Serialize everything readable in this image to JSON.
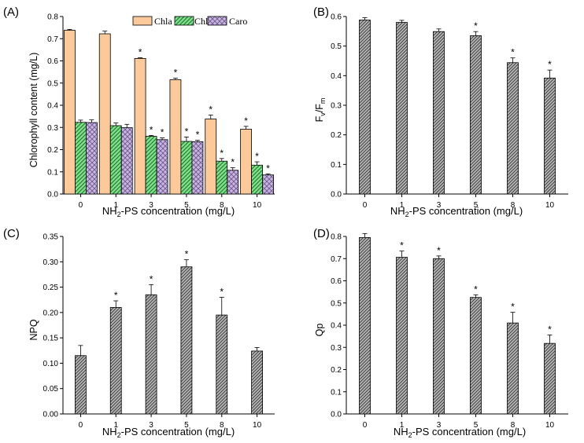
{
  "colors": {
    "chla": "#fbc99a",
    "chlb": "#7ee08a",
    "caro": "#c8b6df",
    "grey": "#a6a6a6",
    "axis": "#000000"
  },
  "chart_data": [
    {
      "panel": "(A)",
      "type": "bar",
      "categories": [
        "0",
        "1",
        "3",
        "5",
        "8",
        "10"
      ],
      "xlabel_main": "NH",
      "xlabel_sub": "2",
      "xlabel_rest": "-PS concentration (mg/L)",
      "ylabel": "Chlorophyll content (mg/L)",
      "ylim": [
        0,
        0.8
      ],
      "yticks": [
        "0.0",
        "0.1",
        "0.2",
        "0.3",
        "0.4",
        "0.5",
        "0.6",
        "0.7",
        "0.8"
      ],
      "legend_position": "top-right",
      "series": [
        {
          "name": "Chla",
          "values": [
            0.738,
            0.722,
            0.611,
            0.515,
            0.338,
            0.292
          ],
          "errors": [
            0.004,
            0.012,
            0.003,
            0.007,
            0.018,
            0.013
          ],
          "sig": [
            "",
            "",
            "*",
            "*",
            "*",
            "*"
          ]
        },
        {
          "name": "Chlc",
          "values": [
            0.323,
            0.308,
            0.26,
            0.237,
            0.148,
            0.13
          ],
          "errors": [
            0.01,
            0.012,
            0.004,
            0.02,
            0.012,
            0.015
          ],
          "sig": [
            "",
            "",
            "*",
            "*",
            "*",
            "*"
          ]
        },
        {
          "name": "Caro",
          "values": [
            0.322,
            0.299,
            0.245,
            0.236,
            0.107,
            0.086
          ],
          "errors": [
            0.012,
            0.015,
            0.008,
            0.006,
            0.012,
            0.005
          ],
          "sig": [
            "",
            "",
            "*",
            "*",
            "*",
            "*"
          ]
        }
      ]
    },
    {
      "panel": "(B)",
      "type": "bar",
      "categories": [
        "0",
        "1",
        "3",
        "5",
        "8",
        "10"
      ],
      "xlabel_main": "NH",
      "xlabel_sub": "2",
      "xlabel_rest": "-PS concentration (mg/L)",
      "ylabel_main": "F",
      "ylabel_sub1": "v",
      "ylabel_mid": "/F",
      "ylabel_sub2": "m",
      "ylim": [
        0,
        0.6
      ],
      "yticks": [
        "0.0",
        "0.1",
        "0.2",
        "0.3",
        "0.4",
        "0.5",
        "0.6"
      ],
      "series": [
        {
          "name": "Fv/Fm",
          "values": [
            0.588,
            0.58,
            0.549,
            0.535,
            0.444,
            0.392
          ],
          "errors": [
            0.008,
            0.007,
            0.009,
            0.014,
            0.016,
            0.027
          ],
          "sig": [
            "",
            "",
            "",
            "*",
            "*",
            "*"
          ]
        }
      ]
    },
    {
      "panel": "(C)",
      "type": "bar",
      "categories": [
        "0",
        "1",
        "3",
        "5",
        "8",
        "10"
      ],
      "xlabel_main": "NH",
      "xlabel_sub": "2",
      "xlabel_rest": "-PS concentration (mg/L)",
      "ylabel": "NPQ",
      "ylim": [
        0,
        0.35
      ],
      "yticks": [
        "0.00",
        "0.05",
        "0.10",
        "0.15",
        "0.20",
        "0.25",
        "0.30",
        "0.35"
      ],
      "series": [
        {
          "name": "NPQ",
          "values": [
            0.115,
            0.21,
            0.235,
            0.29,
            0.195,
            0.124
          ],
          "errors": [
            0.02,
            0.013,
            0.02,
            0.014,
            0.035,
            0.007
          ],
          "sig": [
            "",
            "*",
            "*",
            "*",
            "*",
            ""
          ]
        }
      ]
    },
    {
      "panel": "(D)",
      "type": "bar",
      "categories": [
        "0",
        "1",
        "3",
        "5",
        "8",
        "10"
      ],
      "xlabel_main": "NH",
      "xlabel_sub": "2",
      "xlabel_rest": "-PS concentration (mg/L)",
      "ylabel": "Qp",
      "ylim": [
        0,
        0.8
      ],
      "yticks": [
        "0.0",
        "0.1",
        "0.2",
        "0.3",
        "0.4",
        "0.5",
        "0.6",
        "0.7",
        "0.8"
      ],
      "series": [
        {
          "name": "Qp",
          "values": [
            0.795,
            0.706,
            0.7,
            0.525,
            0.41,
            0.318
          ],
          "errors": [
            0.018,
            0.028,
            0.012,
            0.012,
            0.048,
            0.038
          ],
          "sig": [
            "",
            "*",
            "*",
            "*",
            "*",
            "*"
          ]
        }
      ]
    }
  ]
}
